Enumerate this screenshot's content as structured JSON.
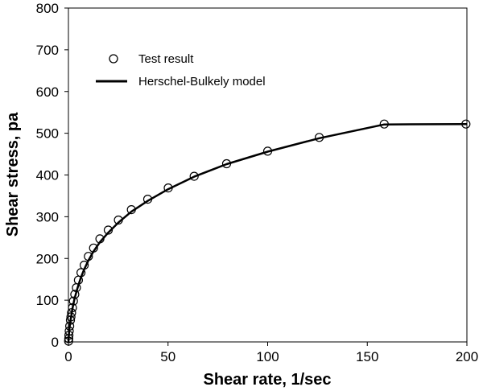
{
  "chart_data": {
    "type": "scatter",
    "xlabel": "Shear rate, 1/sec",
    "ylabel": "Shear stress, pa",
    "xlim": [
      0,
      200
    ],
    "ylim": [
      0,
      800
    ],
    "x_ticks": [
      0,
      50,
      100,
      150,
      200
    ],
    "y_ticks": [
      0,
      100,
      200,
      300,
      400,
      500,
      600,
      700,
      800
    ],
    "grid": false,
    "legend_position": "top-left",
    "series": [
      {
        "name": "Test result",
        "style": "open-circle-markers",
        "color": "#000000",
        "x": [
          0.1,
          0.16,
          0.25,
          0.4,
          0.63,
          1.0,
          1.26,
          1.58,
          2.0,
          2.5,
          3.2,
          4.0,
          5.0,
          6.3,
          7.9,
          10.0,
          12.6,
          15.8,
          20.0,
          25.1,
          31.6,
          39.8,
          50.1,
          63.1,
          79.4,
          100.0,
          125.9,
          158.5,
          199.5
        ],
        "y": [
          2,
          8,
          16,
          26,
          38,
          52,
          60,
          70,
          82,
          98,
          114,
          130,
          148,
          166,
          184,
          205,
          225,
          247,
          268,
          292,
          317,
          342,
          369,
          397,
          427,
          457,
          490,
          522,
          522
        ]
      },
      {
        "name": "Herschel-Bulkely model",
        "style": "solid-line",
        "color": "#000000",
        "x": [
          0,
          0.1,
          0.25,
          0.5,
          1,
          2,
          3,
          4,
          5,
          6.3,
          7.9,
          10,
          12.6,
          15.8,
          20,
          25.1,
          31.6,
          39.8,
          50.1,
          63.1,
          79.4,
          100,
          125.9,
          158.5,
          200
        ],
        "y": [
          0,
          6,
          18,
          32,
          50,
          80,
          102,
          120,
          136,
          155,
          174,
          195,
          217,
          239,
          262,
          286,
          312,
          338,
          366,
          396,
          426,
          456,
          488,
          521,
          522
        ]
      }
    ]
  }
}
